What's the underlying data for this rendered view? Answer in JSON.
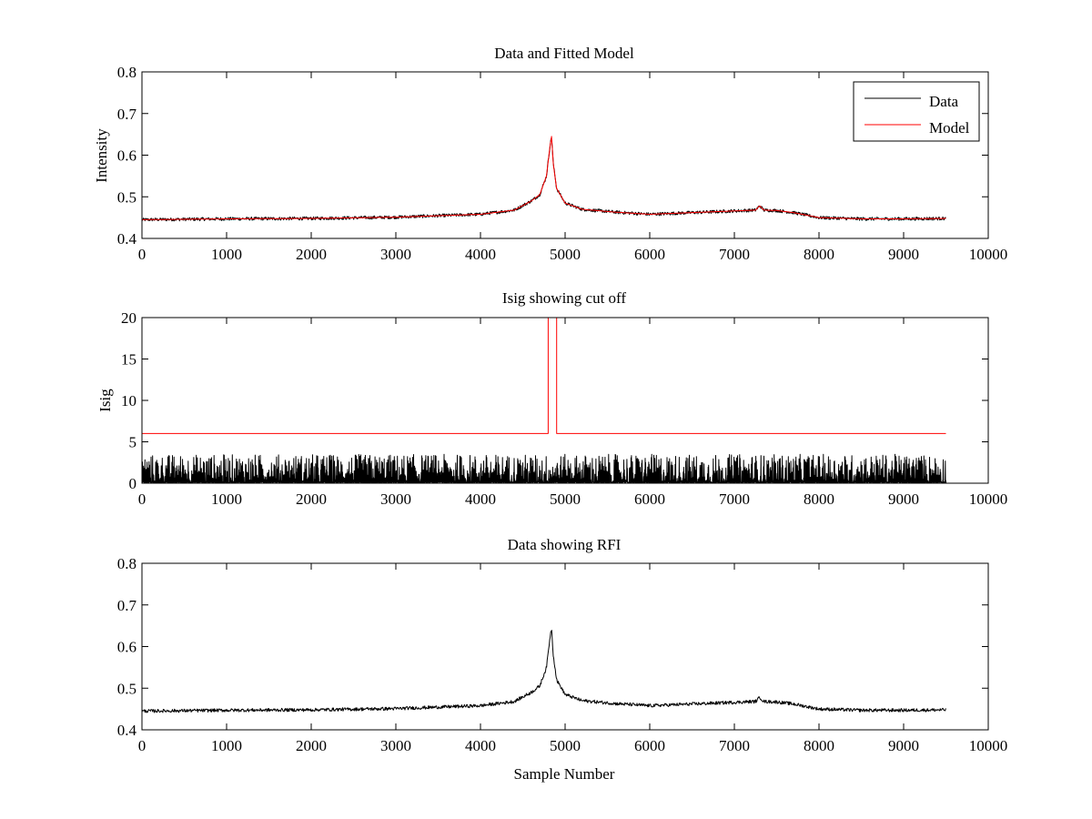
{
  "chart_data": [
    {
      "type": "line",
      "title": "Data and Fitted Model",
      "xlabel": "",
      "ylabel": "Intensity",
      "xlim": [
        0,
        10000
      ],
      "ylim": [
        0.4,
        0.8
      ],
      "xticks": [
        "0",
        "1000",
        "2000",
        "3000",
        "4000",
        "5000",
        "6000",
        "7000",
        "8000",
        "9000",
        "10000"
      ],
      "yticks": [
        "0.4",
        "0.5",
        "0.6",
        "0.7",
        "0.8"
      ],
      "grid": false,
      "legend": {
        "placement": "top-right",
        "entries": [
          "Data",
          "Model"
        ]
      },
      "series": [
        {
          "name": "Data",
          "color": "#000000",
          "noise": 0.004,
          "x": [
            0,
            1000,
            2000,
            3000,
            4000,
            4400,
            4600,
            4700,
            4780,
            4820,
            4840,
            4860,
            4900,
            5000,
            5200,
            5600,
            6000,
            6500,
            7000,
            7250,
            7300,
            7350,
            7500,
            7700,
            8000,
            8500,
            9000,
            9500
          ],
          "y": [
            0.445,
            0.447,
            0.448,
            0.451,
            0.458,
            0.468,
            0.49,
            0.505,
            0.55,
            0.62,
            0.645,
            0.58,
            0.52,
            0.485,
            0.47,
            0.463,
            0.458,
            0.462,
            0.466,
            0.468,
            0.478,
            0.468,
            0.467,
            0.462,
            0.45,
            0.447,
            0.447,
            0.448
          ]
        },
        {
          "name": "Model",
          "color": "#ff0000",
          "noise": 0,
          "x": [
            0,
            1000,
            2000,
            3000,
            4000,
            4400,
            4600,
            4700,
            4780,
            4820,
            4840,
            4860,
            4900,
            5000,
            5200,
            5600,
            6000,
            6500,
            7000,
            7250,
            7300,
            7350,
            7500,
            7700,
            8000,
            8500,
            9000,
            9500
          ],
          "y": [
            0.445,
            0.447,
            0.448,
            0.451,
            0.458,
            0.468,
            0.49,
            0.505,
            0.55,
            0.62,
            0.645,
            0.58,
            0.52,
            0.485,
            0.47,
            0.463,
            0.458,
            0.462,
            0.466,
            0.468,
            0.478,
            0.468,
            0.467,
            0.462,
            0.45,
            0.447,
            0.447,
            0.448
          ]
        }
      ]
    },
    {
      "type": "line",
      "title": "Isig showing cut off",
      "xlabel": "",
      "ylabel": "Isig",
      "xlim": [
        0,
        10000
      ],
      "ylim": [
        0,
        20
      ],
      "xticks": [
        "0",
        "1000",
        "2000",
        "3000",
        "4000",
        "5000",
        "6000",
        "7000",
        "8000",
        "9000",
        "10000"
      ],
      "yticks": [
        "0",
        "5",
        "10",
        "15",
        "20"
      ],
      "grid": false,
      "series": [
        {
          "name": "Isig",
          "color": "#000000",
          "noise_range": [
            0,
            3.5
          ],
          "x_range": [
            0,
            9500
          ]
        },
        {
          "name": "Cut off",
          "color": "#ff0000",
          "x": [
            0,
            4800,
            4800,
            4900,
            4900,
            9500
          ],
          "y": [
            6,
            6,
            20,
            20,
            6,
            6
          ]
        }
      ]
    },
    {
      "type": "line",
      "title": "Data showing RFI",
      "xlabel": "Sample Number",
      "ylabel": "",
      "xlim": [
        0,
        10000
      ],
      "ylim": [
        0.4,
        0.8
      ],
      "xticks": [
        "0",
        "1000",
        "2000",
        "3000",
        "4000",
        "5000",
        "6000",
        "7000",
        "8000",
        "9000",
        "10000"
      ],
      "yticks": [
        "0.4",
        "0.5",
        "0.6",
        "0.7",
        "0.8"
      ],
      "grid": false,
      "series": [
        {
          "name": "Data",
          "color": "#000000",
          "noise": 0.004,
          "x": [
            0,
            1000,
            2000,
            3000,
            4000,
            4400,
            4600,
            4700,
            4780,
            4820,
            4840,
            4860,
            4900,
            5000,
            5200,
            5600,
            6000,
            6500,
            7000,
            7250,
            7300,
            7350,
            7500,
            7700,
            8000,
            8500,
            9000,
            9500
          ],
          "y": [
            0.445,
            0.447,
            0.448,
            0.451,
            0.458,
            0.468,
            0.49,
            0.505,
            0.55,
            0.62,
            0.645,
            0.58,
            0.52,
            0.485,
            0.47,
            0.463,
            0.458,
            0.462,
            0.466,
            0.468,
            0.478,
            0.468,
            0.467,
            0.462,
            0.45,
            0.447,
            0.447,
            0.448
          ]
        }
      ]
    }
  ]
}
